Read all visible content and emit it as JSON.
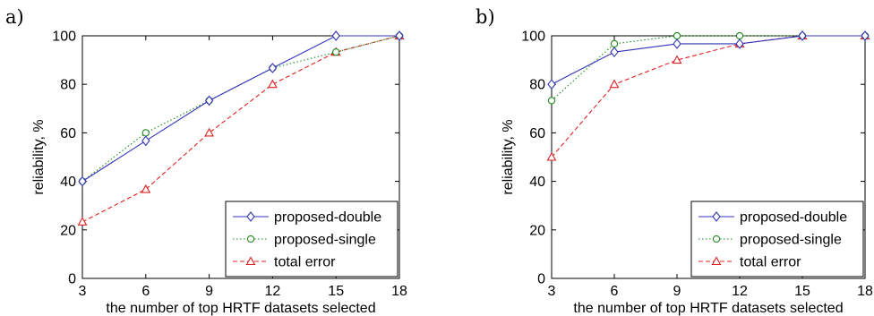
{
  "chart_data": [
    {
      "type": "line",
      "panel_label": "a)",
      "xlabel": "the number of top HRTF datasets selected",
      "ylabel": "reliability, %",
      "x": [
        3,
        6,
        9,
        12,
        15,
        18
      ],
      "xlim": [
        3,
        18
      ],
      "ylim": [
        0,
        100
      ],
      "xticks": [
        3,
        6,
        9,
        12,
        15,
        18
      ],
      "yticks": [
        0,
        20,
        40,
        60,
        80,
        100
      ],
      "grid": false,
      "legend_position": "bottom-right",
      "series": [
        {
          "name": "proposed-double",
          "color": "#3333bb",
          "marker": "diamond",
          "dash": "solid",
          "values": [
            40,
            56.7,
            73.3,
            86.7,
            100,
            100
          ]
        },
        {
          "name": "proposed-single",
          "color": "#1f8a1f",
          "marker": "circle",
          "dash": "dotted",
          "values": [
            40,
            60,
            73.3,
            86.7,
            93.3,
            100
          ]
        },
        {
          "name": "total error",
          "color": "#e02020",
          "marker": "triangle",
          "dash": "dashed",
          "values": [
            23.3,
            36.7,
            60,
            80,
            93.3,
            100
          ]
        }
      ]
    },
    {
      "type": "line",
      "panel_label": "b)",
      "xlabel": "the number of top HRTF datasets selected",
      "ylabel": "reliability, %",
      "x": [
        3,
        6,
        9,
        12,
        15,
        18
      ],
      "xlim": [
        3,
        18
      ],
      "ylim": [
        0,
        100
      ],
      "xticks": [
        3,
        6,
        9,
        12,
        15,
        18
      ],
      "yticks": [
        0,
        20,
        40,
        60,
        80,
        100
      ],
      "grid": false,
      "legend_position": "bottom-right",
      "series": [
        {
          "name": "proposed-double",
          "color": "#3333bb",
          "marker": "diamond",
          "dash": "solid",
          "values": [
            80,
            93.3,
            96.7,
            96.7,
            100,
            100
          ]
        },
        {
          "name": "proposed-single",
          "color": "#1f8a1f",
          "marker": "circle",
          "dash": "dotted",
          "values": [
            73.3,
            96.7,
            100,
            100,
            100,
            100
          ]
        },
        {
          "name": "total error",
          "color": "#e02020",
          "marker": "triangle",
          "dash": "dashed",
          "values": [
            50,
            80,
            90,
            96.7,
            100,
            100
          ]
        }
      ]
    }
  ]
}
